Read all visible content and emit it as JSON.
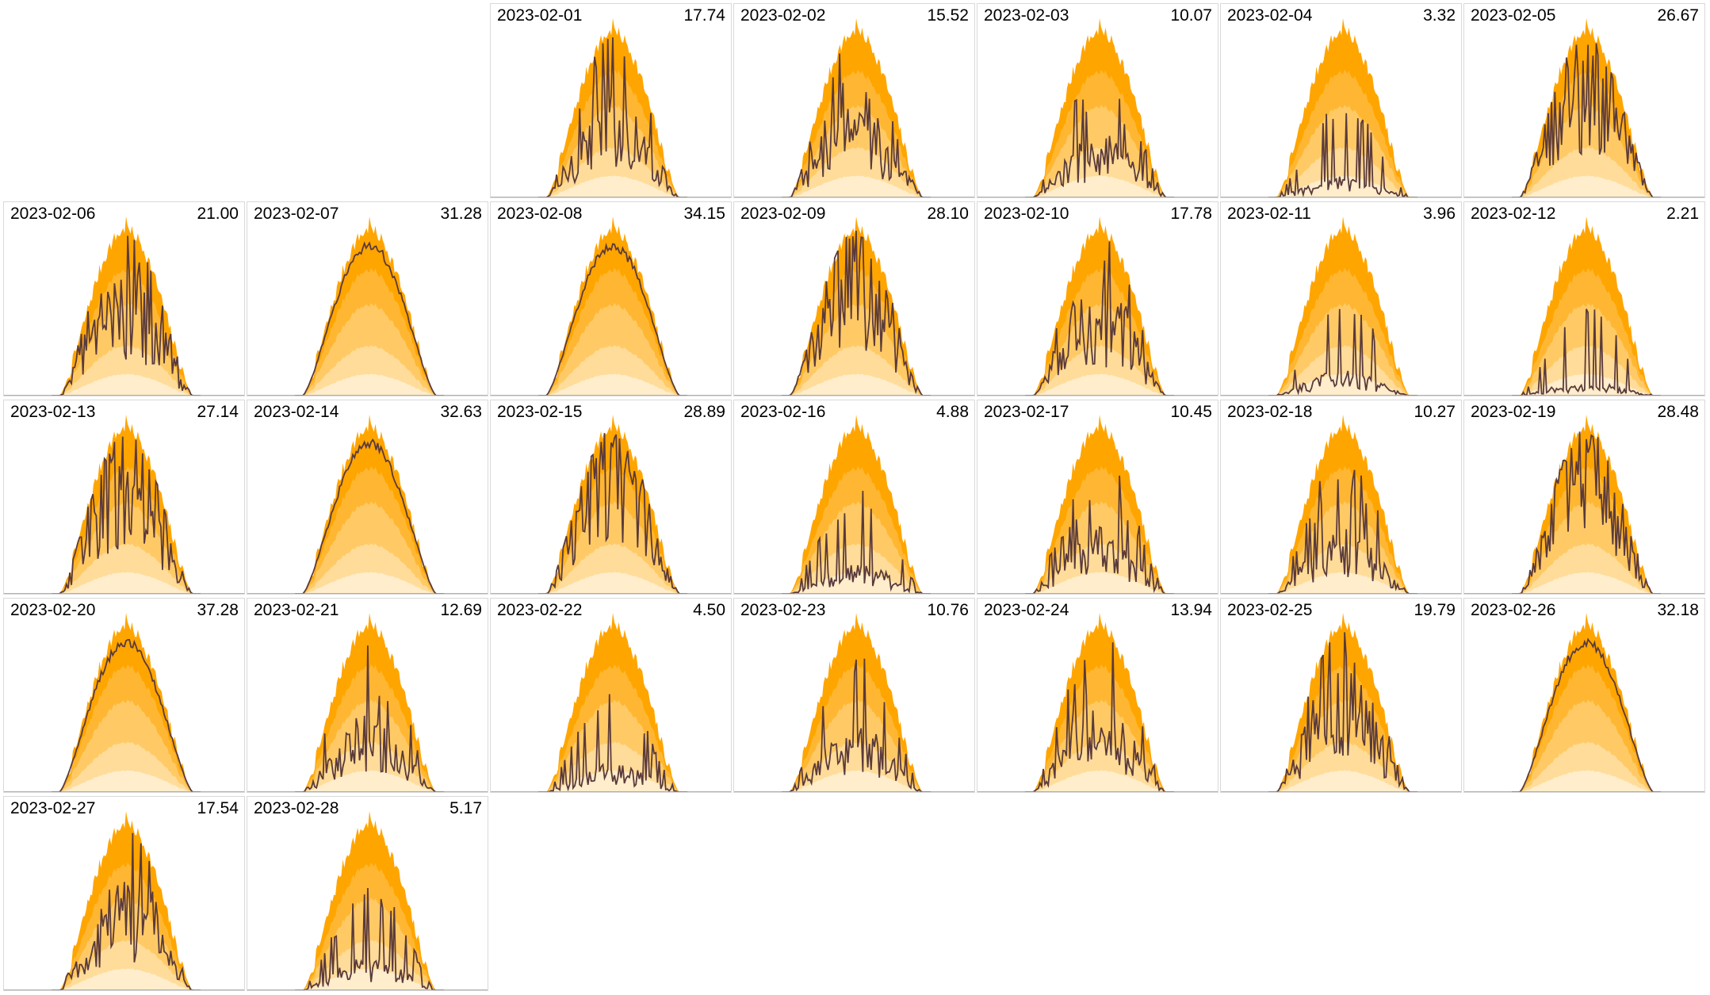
{
  "colors": {
    "band_max": "#ffa500",
    "band_p75": "#ffb733",
    "band_p50": "#ffca66",
    "band_p25": "#ffdc99",
    "band_min": "#ffedcc",
    "actual_line": "#5a3a3a",
    "baseline": "#999999",
    "marker": "#ff6b6b"
  },
  "chart_data": {
    "type": "area",
    "title": "",
    "xlabel": "",
    "ylabel": "",
    "grid": false,
    "layout": "calendar grid, 7 columns, weeks start on Monday",
    "first_weekday_offset": 2,
    "days": [
      {
        "date": "2023-02-01",
        "total": "17.74"
      },
      {
        "date": "2023-02-02",
        "total": "15.52"
      },
      {
        "date": "2023-02-03",
        "total": "10.07"
      },
      {
        "date": "2023-02-04",
        "total": "3.32"
      },
      {
        "date": "2023-02-05",
        "total": "26.67"
      },
      {
        "date": "2023-02-06",
        "total": "21.00"
      },
      {
        "date": "2023-02-07",
        "total": "31.28"
      },
      {
        "date": "2023-02-08",
        "total": "34.15"
      },
      {
        "date": "2023-02-09",
        "total": "28.10"
      },
      {
        "date": "2023-02-10",
        "total": "17.78"
      },
      {
        "date": "2023-02-11",
        "total": "3.96"
      },
      {
        "date": "2023-02-12",
        "total": "2.21"
      },
      {
        "date": "2023-02-13",
        "total": "27.14"
      },
      {
        "date": "2023-02-14",
        "total": "32.63"
      },
      {
        "date": "2023-02-15",
        "total": "28.89"
      },
      {
        "date": "2023-02-16",
        "total": "4.88"
      },
      {
        "date": "2023-02-17",
        "total": "10.45"
      },
      {
        "date": "2023-02-18",
        "total": "10.27"
      },
      {
        "date": "2023-02-19",
        "total": "28.48"
      },
      {
        "date": "2023-02-20",
        "total": "37.28"
      },
      {
        "date": "2023-02-21",
        "total": "12.69"
      },
      {
        "date": "2023-02-22",
        "total": "4.50"
      },
      {
        "date": "2023-02-23",
        "total": "10.76"
      },
      {
        "date": "2023-02-24",
        "total": "13.94"
      },
      {
        "date": "2023-02-25",
        "total": "19.79"
      },
      {
        "date": "2023-02-26",
        "total": "32.18"
      },
      {
        "date": "2023-02-27",
        "total": "17.54"
      },
      {
        "date": "2023-02-28",
        "total": "5.17"
      }
    ]
  }
}
